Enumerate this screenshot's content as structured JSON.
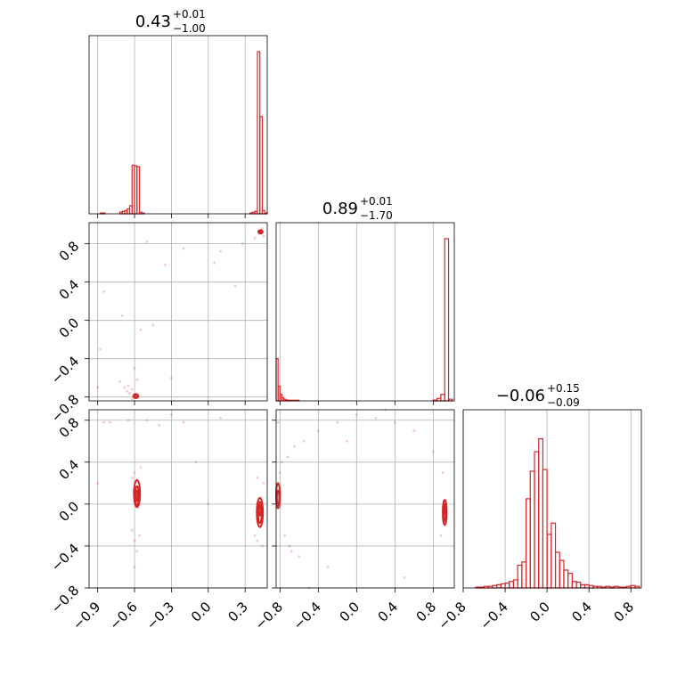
{
  "chart_data": {
    "type": "corner",
    "accent_color": "#d62728",
    "grid": true,
    "titles": [
      {
        "value": "0.43",
        "plus": "+0.01",
        "minus": "−1.00"
      },
      {
        "value": "0.89",
        "plus": "+0.01",
        "minus": "−1.70"
      },
      {
        "value": "−0.06",
        "plus": "+0.15",
        "minus": "−0.09"
      }
    ],
    "ranges": [
      [
        -0.97,
        0.48
      ],
      [
        -0.84,
        1.02
      ],
      [
        -0.8,
        0.9
      ]
    ],
    "ticks": [
      {
        "values": [
          -0.9,
          -0.6,
          -0.3,
          0.0,
          0.3
        ],
        "labels": [
          "−0.9",
          "−0.6",
          "−0.3",
          "0.0",
          "0.3"
        ]
      },
      {
        "values": [
          -0.8,
          -0.4,
          0.0,
          0.4,
          0.8
        ],
        "labels": [
          "−0.8",
          "−0.4",
          "0.0",
          "0.4",
          "0.8"
        ]
      },
      {
        "values": [
          -0.8,
          -0.4,
          0.0,
          0.4,
          0.8
        ],
        "labels": [
          "−0.8",
          "−0.4",
          "0.0",
          "0.4",
          "0.8"
        ]
      }
    ],
    "histograms": [
      {
        "bins": [
          [
            -0.88,
            -0.86,
            0.005
          ],
          [
            -0.86,
            -0.84,
            0.005
          ],
          [
            -0.72,
            -0.7,
            0.01
          ],
          [
            -0.7,
            -0.68,
            0.015
          ],
          [
            -0.68,
            -0.66,
            0.02
          ],
          [
            -0.66,
            -0.64,
            0.03
          ],
          [
            -0.64,
            -0.62,
            0.05
          ],
          [
            -0.62,
            -0.6,
            0.3
          ],
          [
            -0.6,
            -0.58,
            0.295
          ],
          [
            -0.58,
            -0.56,
            0.29
          ],
          [
            -0.56,
            -0.54,
            0.01
          ],
          [
            -0.54,
            -0.52,
            0.005
          ],
          [
            0.34,
            0.36,
            0.005
          ],
          [
            0.36,
            0.38,
            0.01
          ],
          [
            0.38,
            0.4,
            0.015
          ],
          [
            0.4,
            0.42,
            1.0
          ],
          [
            0.42,
            0.44,
            0.6
          ],
          [
            0.44,
            0.46,
            0.02
          ],
          [
            0.46,
            0.48,
            0.005
          ]
        ]
      },
      {
        "bins": [
          [
            -0.84,
            -0.82,
            0.26
          ],
          [
            -0.82,
            -0.8,
            0.09
          ],
          [
            -0.8,
            -0.78,
            0.04
          ],
          [
            -0.78,
            -0.76,
            0.02
          ],
          [
            -0.76,
            -0.74,
            0.01
          ],
          [
            -0.74,
            -0.72,
            0.005
          ],
          [
            -0.72,
            -0.6,
            0.004
          ],
          [
            0.8,
            0.84,
            0.005
          ],
          [
            0.84,
            0.88,
            0.015
          ],
          [
            0.88,
            0.92,
            0.04
          ],
          [
            0.92,
            0.96,
            1.0
          ],
          [
            0.96,
            1.0,
            0.01
          ]
        ]
      },
      {
        "bins": [
          [
            -0.68,
            -0.64,
            0.005
          ],
          [
            -0.64,
            -0.6,
            0.005
          ],
          [
            -0.6,
            -0.56,
            0.01
          ],
          [
            -0.56,
            -0.52,
            0.01
          ],
          [
            -0.52,
            -0.48,
            0.015
          ],
          [
            -0.48,
            -0.44,
            0.02
          ],
          [
            -0.44,
            -0.4,
            0.025
          ],
          [
            -0.4,
            -0.36,
            0.03
          ],
          [
            -0.36,
            -0.32,
            0.04
          ],
          [
            -0.32,
            -0.28,
            0.05
          ],
          [
            -0.28,
            -0.24,
            0.14
          ],
          [
            -0.24,
            -0.2,
            0.16
          ],
          [
            -0.2,
            -0.16,
            0.55
          ],
          [
            -0.16,
            -0.12,
            0.72
          ],
          [
            -0.12,
            -0.08,
            0.84
          ],
          [
            -0.08,
            -0.04,
            0.92
          ],
          [
            -0.04,
            0.0,
            0.73
          ],
          [
            0.0,
            0.04,
            0.33
          ],
          [
            0.04,
            0.08,
            0.4
          ],
          [
            0.08,
            0.12,
            0.22
          ],
          [
            0.12,
            0.16,
            0.17
          ],
          [
            0.16,
            0.2,
            0.11
          ],
          [
            0.2,
            0.24,
            0.09
          ],
          [
            0.24,
            0.28,
            0.04
          ],
          [
            0.28,
            0.32,
            0.035
          ],
          [
            0.32,
            0.36,
            0.02
          ],
          [
            0.36,
            0.4,
            0.02
          ],
          [
            0.4,
            0.44,
            0.015
          ],
          [
            0.44,
            0.48,
            0.01
          ],
          [
            0.48,
            0.52,
            0.01
          ],
          [
            0.52,
            0.56,
            0.005
          ],
          [
            0.56,
            0.6,
            0.01
          ],
          [
            0.6,
            0.64,
            0.005
          ],
          [
            0.64,
            0.68,
            0.01
          ],
          [
            0.68,
            0.72,
            0.005
          ],
          [
            0.72,
            0.76,
            0.005
          ],
          [
            0.76,
            0.8,
            0.01
          ],
          [
            0.8,
            0.84,
            0.015
          ],
          [
            0.84,
            0.88,
            0.01
          ]
        ]
      }
    ],
    "joint": [
      {
        "x_param": 0,
        "y_param": 1,
        "contours": [
          {
            "cx": 0.425,
            "cy": 0.925,
            "rx": 0.018,
            "ry": 0.018
          },
          {
            "cx": 0.425,
            "cy": 0.925,
            "rx": 0.01,
            "ry": 0.01
          },
          {
            "cx": -0.59,
            "cy": -0.79,
            "rx": 0.02,
            "ry": 0.022
          },
          {
            "cx": -0.59,
            "cy": -0.79,
            "rx": 0.011,
            "ry": 0.012
          }
        ],
        "points": [
          [
            -0.72,
            -0.64
          ],
          [
            -0.68,
            -0.7
          ],
          [
            -0.66,
            -0.74
          ],
          [
            -0.64,
            -0.76
          ],
          [
            -0.62,
            -0.72
          ],
          [
            -0.65,
            -0.68
          ],
          [
            -0.58,
            -0.62
          ],
          [
            -0.6,
            -0.5
          ],
          [
            -0.55,
            -0.1
          ],
          [
            -0.45,
            -0.05
          ],
          [
            -0.5,
            0.82
          ],
          [
            -0.35,
            0.58
          ],
          [
            -0.2,
            0.75
          ],
          [
            0.1,
            0.72
          ],
          [
            0.05,
            0.6
          ],
          [
            0.22,
            0.36
          ],
          [
            0.28,
            0.8
          ],
          [
            -0.85,
            0.3
          ],
          [
            -0.88,
            -0.3
          ],
          [
            -0.9,
            -0.7
          ],
          [
            -0.7,
            0.05
          ],
          [
            -0.3,
            -0.6
          ],
          [
            0.38,
            0.86
          ],
          [
            0.44,
            0.96
          ],
          [
            0.45,
            0.88
          ],
          [
            -0.62,
            -0.82
          ],
          [
            -0.57,
            -0.8
          ]
        ]
      },
      {
        "x_param": 0,
        "y_param": 2,
        "contours": [
          {
            "cx": -0.58,
            "cy": 0.1,
            "rx": 0.025,
            "ry": 0.13
          },
          {
            "cx": -0.58,
            "cy": 0.08,
            "rx": 0.016,
            "ry": 0.09
          },
          {
            "cx": -0.58,
            "cy": 0.08,
            "rx": 0.008,
            "ry": 0.05
          },
          {
            "cx": 0.42,
            "cy": -0.08,
            "rx": 0.025,
            "ry": 0.14
          },
          {
            "cx": 0.42,
            "cy": -0.08,
            "rx": 0.016,
            "ry": 0.1
          },
          {
            "cx": 0.42,
            "cy": -0.06,
            "rx": 0.008,
            "ry": 0.05
          }
        ],
        "points": [
          [
            -0.6,
            0.3
          ],
          [
            -0.62,
            0.25
          ],
          [
            -0.56,
            -0.3
          ],
          [
            -0.6,
            -0.35
          ],
          [
            -0.58,
            -0.45
          ],
          [
            -0.62,
            -0.25
          ],
          [
            -0.55,
            0.35
          ],
          [
            -0.65,
            0.8
          ],
          [
            -0.8,
            0.78
          ],
          [
            -0.5,
            0.8
          ],
          [
            -0.3,
            0.85
          ],
          [
            -0.4,
            0.75
          ],
          [
            0.1,
            0.82
          ],
          [
            -0.1,
            0.4
          ],
          [
            -0.6,
            -0.6
          ],
          [
            -0.9,
            0.2
          ],
          [
            0.0,
            0.0
          ],
          [
            0.4,
            -0.35
          ],
          [
            0.44,
            -0.4
          ],
          [
            0.38,
            -0.3
          ],
          [
            0.45,
            0.2
          ],
          [
            0.4,
            0.25
          ],
          [
            -0.85,
            0.78
          ],
          [
            -0.2,
            0.78
          ]
        ]
      },
      {
        "x_param": 1,
        "y_param": 2,
        "contours": [
          {
            "cx": -0.82,
            "cy": 0.08,
            "rx": 0.02,
            "ry": 0.12
          },
          {
            "cx": -0.82,
            "cy": 0.06,
            "rx": 0.012,
            "ry": 0.07
          },
          {
            "cx": 0.92,
            "cy": -0.08,
            "rx": 0.02,
            "ry": 0.12
          },
          {
            "cx": 0.92,
            "cy": -0.08,
            "rx": 0.012,
            "ry": 0.08
          },
          {
            "cx": 0.92,
            "cy": -0.06,
            "rx": 0.006,
            "ry": 0.04
          }
        ],
        "points": [
          [
            -0.8,
            0.3
          ],
          [
            -0.78,
            0.4
          ],
          [
            -0.75,
            -0.3
          ],
          [
            -0.7,
            -0.4
          ],
          [
            -0.68,
            -0.45
          ],
          [
            -0.72,
            0.45
          ],
          [
            -0.65,
            0.55
          ],
          [
            -0.6,
            -0.5
          ],
          [
            -0.55,
            0.6
          ],
          [
            -0.4,
            0.7
          ],
          [
            -0.2,
            0.78
          ],
          [
            0.0,
            0.85
          ],
          [
            0.2,
            0.82
          ],
          [
            0.4,
            0.78
          ],
          [
            0.6,
            0.7
          ],
          [
            0.8,
            0.5
          ],
          [
            0.5,
            -0.7
          ],
          [
            -0.3,
            -0.6
          ],
          [
            0.88,
            -0.3
          ],
          [
            0.9,
            0.3
          ],
          [
            -0.82,
            0.78
          ],
          [
            -0.5,
            -0.8
          ],
          [
            0.3,
            0.9
          ],
          [
            -0.1,
            0.6
          ]
        ]
      }
    ]
  }
}
